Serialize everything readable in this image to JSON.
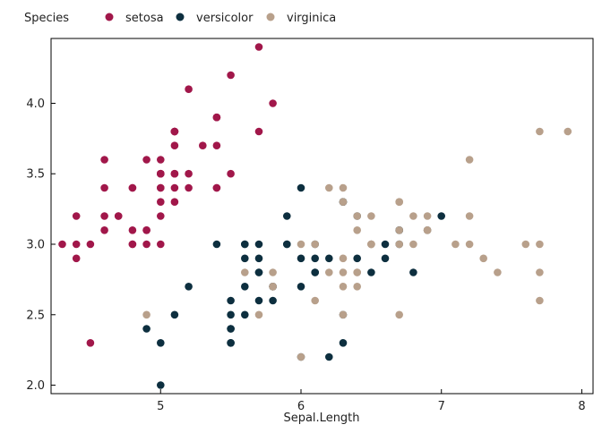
{
  "chart_data": {
    "type": "scatter",
    "title": "",
    "xlabel": "Sepal.Length",
    "ylabel": "",
    "xlim": [
      4.22,
      8.08
    ],
    "ylim": [
      1.94,
      4.46
    ],
    "x_ticks": [
      5,
      6,
      7,
      8
    ],
    "y_ticks": [
      2.0,
      2.5,
      3.0,
      3.5,
      4.0
    ],
    "y_tick_labels": [
      "2.0",
      "2.5",
      "3.0",
      "3.5",
      "4.0"
    ],
    "grid": false,
    "legend": {
      "title": "Species",
      "position": "top-left"
    },
    "series": [
      {
        "name": "setosa",
        "color": "#a1174a",
        "points": [
          [
            4.3,
            3.0
          ],
          [
            4.4,
            2.9
          ],
          [
            4.4,
            3.0
          ],
          [
            4.4,
            3.2
          ],
          [
            4.5,
            2.3
          ],
          [
            4.6,
            3.1
          ],
          [
            4.6,
            3.2
          ],
          [
            4.6,
            3.4
          ],
          [
            4.6,
            3.6
          ],
          [
            4.7,
            3.2
          ],
          [
            4.7,
            3.2
          ],
          [
            4.8,
            3.0
          ],
          [
            4.8,
            3.0
          ],
          [
            4.8,
            3.1
          ],
          [
            4.8,
            3.4
          ],
          [
            4.8,
            3.4
          ],
          [
            4.9,
            3.0
          ],
          [
            4.9,
            3.1
          ],
          [
            4.9,
            3.1
          ],
          [
            4.9,
            3.6
          ],
          [
            5.0,
            3.0
          ],
          [
            5.0,
            3.2
          ],
          [
            5.0,
            3.3
          ],
          [
            5.0,
            3.4
          ],
          [
            5.0,
            3.4
          ],
          [
            5.0,
            3.5
          ],
          [
            5.0,
            3.5
          ],
          [
            5.0,
            3.6
          ],
          [
            5.1,
            3.3
          ],
          [
            5.1,
            3.4
          ],
          [
            5.1,
            3.5
          ],
          [
            5.1,
            3.5
          ],
          [
            5.1,
            3.7
          ],
          [
            5.1,
            3.8
          ],
          [
            5.1,
            3.8
          ],
          [
            5.1,
            3.8
          ],
          [
            5.2,
            3.4
          ],
          [
            5.2,
            3.5
          ],
          [
            5.2,
            4.1
          ],
          [
            5.3,
            3.7
          ],
          [
            5.4,
            3.4
          ],
          [
            5.4,
            3.4
          ],
          [
            5.4,
            3.7
          ],
          [
            5.4,
            3.9
          ],
          [
            5.4,
            3.9
          ],
          [
            5.5,
            3.5
          ],
          [
            5.5,
            4.2
          ],
          [
            5.7,
            3.8
          ],
          [
            5.7,
            4.4
          ],
          [
            5.8,
            4.0
          ],
          [
            4.5,
            3.0
          ],
          [
            5.1,
            3.8
          ],
          [
            5.0,
            3.5
          ]
        ]
      },
      {
        "name": "versicolor",
        "color": "#0d2f3f",
        "points": [
          [
            4.9,
            2.4
          ],
          [
            5.0,
            2.0
          ],
          [
            5.0,
            2.3
          ],
          [
            5.1,
            2.5
          ],
          [
            5.2,
            2.7
          ],
          [
            5.4,
            3.0
          ],
          [
            5.5,
            2.3
          ],
          [
            5.5,
            2.4
          ],
          [
            5.5,
            2.4
          ],
          [
            5.5,
            2.5
          ],
          [
            5.5,
            2.6
          ],
          [
            5.6,
            2.5
          ],
          [
            5.6,
            2.7
          ],
          [
            5.6,
            2.9
          ],
          [
            5.6,
            3.0
          ],
          [
            5.6,
            3.0
          ],
          [
            5.7,
            2.6
          ],
          [
            5.7,
            2.8
          ],
          [
            5.7,
            2.8
          ],
          [
            5.7,
            2.9
          ],
          [
            5.7,
            3.0
          ],
          [
            5.8,
            2.6
          ],
          [
            5.8,
            2.7
          ],
          [
            5.8,
            2.7
          ],
          [
            5.9,
            3.0
          ],
          [
            5.9,
            3.2
          ],
          [
            6.0,
            2.2
          ],
          [
            6.0,
            2.7
          ],
          [
            6.0,
            2.9
          ],
          [
            6.0,
            3.4
          ],
          [
            6.1,
            2.8
          ],
          [
            6.1,
            2.8
          ],
          [
            6.1,
            2.9
          ],
          [
            6.1,
            3.0
          ],
          [
            6.2,
            2.2
          ],
          [
            6.2,
            2.9
          ],
          [
            6.3,
            2.3
          ],
          [
            6.3,
            2.5
          ],
          [
            6.3,
            3.3
          ],
          [
            6.4,
            2.9
          ],
          [
            6.4,
            3.2
          ],
          [
            6.5,
            2.8
          ],
          [
            6.6,
            2.9
          ],
          [
            6.6,
            3.0
          ],
          [
            6.7,
            3.0
          ],
          [
            6.7,
            3.1
          ],
          [
            6.7,
            3.1
          ],
          [
            6.8,
            2.8
          ],
          [
            6.9,
            3.1
          ],
          [
            7.0,
            3.2
          ],
          [
            5.5,
            2.3
          ],
          [
            5.8,
            2.7
          ],
          [
            5.9,
            3.0
          ],
          [
            6.3,
            3.3
          ]
        ]
      },
      {
        "name": "virginica",
        "color": "#b8a08b",
        "points": [
          [
            4.9,
            2.5
          ],
          [
            5.6,
            2.8
          ],
          [
            5.7,
            2.5
          ],
          [
            5.8,
            2.7
          ],
          [
            5.8,
            2.7
          ],
          [
            5.8,
            2.8
          ],
          [
            6.0,
            2.2
          ],
          [
            6.0,
            3.0
          ],
          [
            6.1,
            2.6
          ],
          [
            6.1,
            3.0
          ],
          [
            6.2,
            2.8
          ],
          [
            6.2,
            3.4
          ],
          [
            6.3,
            2.5
          ],
          [
            6.3,
            2.7
          ],
          [
            6.3,
            2.8
          ],
          [
            6.3,
            2.9
          ],
          [
            6.3,
            3.3
          ],
          [
            6.3,
            3.4
          ],
          [
            6.4,
            2.7
          ],
          [
            6.4,
            2.8
          ],
          [
            6.4,
            2.8
          ],
          [
            6.4,
            3.1
          ],
          [
            6.4,
            3.2
          ],
          [
            6.5,
            3.0
          ],
          [
            6.5,
            3.0
          ],
          [
            6.5,
            3.0
          ],
          [
            6.5,
            3.2
          ],
          [
            6.7,
            2.5
          ],
          [
            6.7,
            3.0
          ],
          [
            6.7,
            3.1
          ],
          [
            6.7,
            3.3
          ],
          [
            6.7,
            3.3
          ],
          [
            6.8,
            3.0
          ],
          [
            6.8,
            3.2
          ],
          [
            6.9,
            3.1
          ],
          [
            6.9,
            3.1
          ],
          [
            6.9,
            3.2
          ],
          [
            7.1,
            3.0
          ],
          [
            7.2,
            3.0
          ],
          [
            7.2,
            3.2
          ],
          [
            7.2,
            3.6
          ],
          [
            7.3,
            2.9
          ],
          [
            7.4,
            2.8
          ],
          [
            7.6,
            3.0
          ],
          [
            7.7,
            2.6
          ],
          [
            7.7,
            2.8
          ],
          [
            7.7,
            3.0
          ],
          [
            7.7,
            3.8
          ],
          [
            7.9,
            3.8
          ],
          [
            6.5,
            3.0
          ]
        ]
      }
    ]
  }
}
